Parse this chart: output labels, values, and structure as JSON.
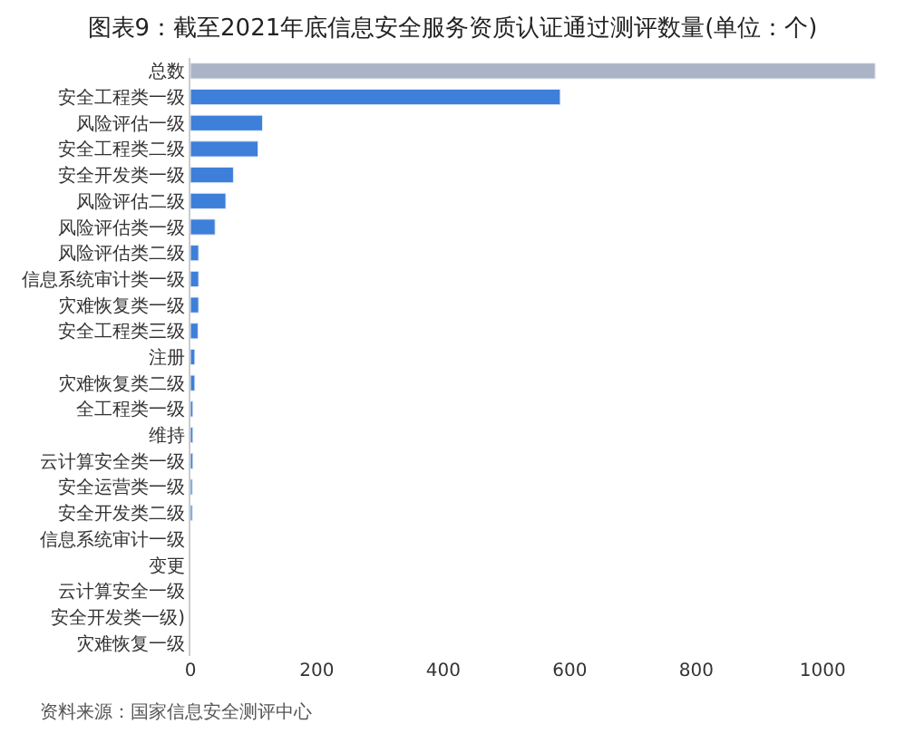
{
  "chart_data": {
    "type": "bar",
    "orientation": "horizontal",
    "title": "图表9：截至2021年底信息安全服务资质认证通过测评数量(单位：个)",
    "categories": [
      "总数",
      "安全工程类一级",
      "风险评估一级",
      "安全工程类二级",
      "安全开发类一级",
      "风险评估二级",
      "风险评估类一级",
      "风险评估类二级",
      "信息系统审计类一级",
      "灾难恢复类一级",
      "安全工程类三级",
      "注册",
      "灾难恢复类二级",
      "全工程类一级",
      "维持",
      "云计算安全类一级",
      "安全运营类一级",
      "安全开发类二级",
      "信息系统审计一级",
      "变更",
      "云计算安全一级",
      "安全开发类一级)",
      "灾难恢复一级"
    ],
    "values": [
      1083,
      585,
      114,
      107,
      68,
      56,
      39,
      13,
      13,
      13,
      12,
      7,
      7,
      4,
      4,
      4,
      3,
      3,
      null,
      null,
      null,
      null,
      null
    ],
    "colors": [
      "#aab4c6",
      "#3d7fd9",
      "#3d7fd9",
      "#3d7fd9",
      "#3d7fd9",
      "#3d7fd9",
      "#3d7fd9",
      "#3d7fd9",
      "#3d7fd9",
      "#3d7fd9",
      "#3d7fd9",
      "#3d7fd9",
      "#3d7fd9",
      "#3d7fd9",
      "#3d7fd9",
      "#3d7fd9",
      "#3d7fd9",
      "#3d7fd9",
      "#3d7fd9",
      "#3d7fd9",
      "#3d7fd9",
      "#3d7fd9",
      "#3d7fd9"
    ],
    "xlim": [
      0,
      1090
    ],
    "xticks": [
      0,
      200,
      400,
      600,
      800,
      1000
    ],
    "annotations": [
      "资料来源：国家信息安全测评中心"
    ]
  }
}
